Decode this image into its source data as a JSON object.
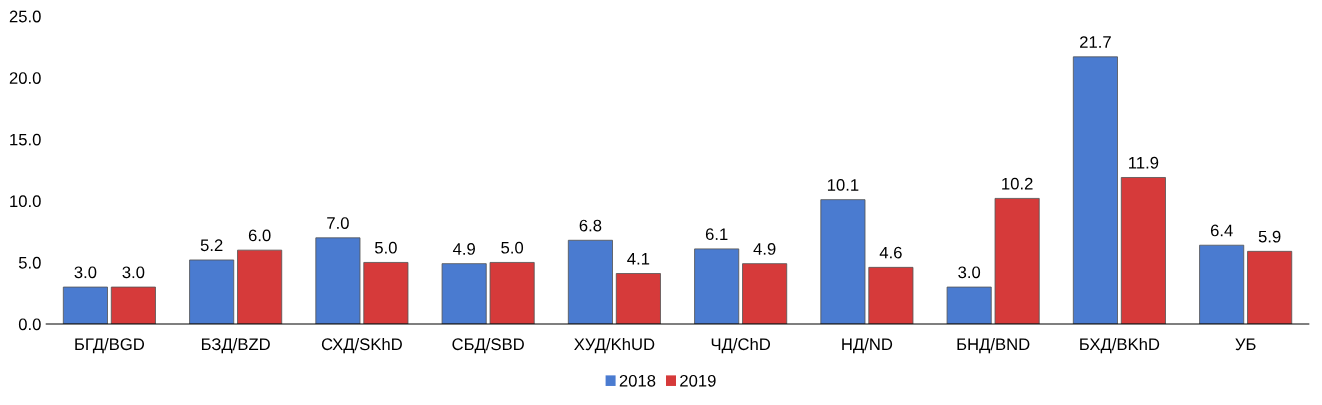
{
  "chart_data": {
    "type": "bar",
    "categories": [
      "БГД/BGD",
      "БЗД/BZD",
      "СХД/SKhD",
      "СБД/SBD",
      "ХУД/KhUD",
      "ЧД/ChD",
      "НД/ND",
      "БНД/BND",
      "БХД/BKhD",
      "УБ"
    ],
    "series": [
      {
        "name": "2018",
        "color": "#4a7bd0",
        "values": [
          3.0,
          5.2,
          7.0,
          4.9,
          6.8,
          6.1,
          10.1,
          3.0,
          21.7,
          6.4
        ],
        "value_labels": [
          "3.0",
          "5.2",
          "7.0",
          "4.9",
          "6.8",
          "6.1",
          "10.1",
          "3.0",
          "21.7",
          "6.4"
        ]
      },
      {
        "name": "2019",
        "color": "#d63a3a",
        "values": [
          3.0,
          6.0,
          5.0,
          5.0,
          4.1,
          4.9,
          4.6,
          10.2,
          11.9,
          5.9
        ],
        "value_labels": [
          "3.0",
          "6.0",
          "5.0",
          "5.0",
          "4.1",
          "4.9",
          "4.6",
          "10.2",
          "11.9",
          "5.9"
        ]
      }
    ],
    "ylim": [
      0,
      25
    ],
    "yticks": [
      {
        "value": 0,
        "label": "0.0"
      },
      {
        "value": 5,
        "label": "5.0"
      },
      {
        "value": 10,
        "label": "10.0"
      },
      {
        "value": 15,
        "label": "15.0"
      },
      {
        "value": 20,
        "label": "20.0"
      },
      {
        "value": 25,
        "label": "25.0"
      }
    ],
    "legend": "bottom",
    "grid": false
  }
}
